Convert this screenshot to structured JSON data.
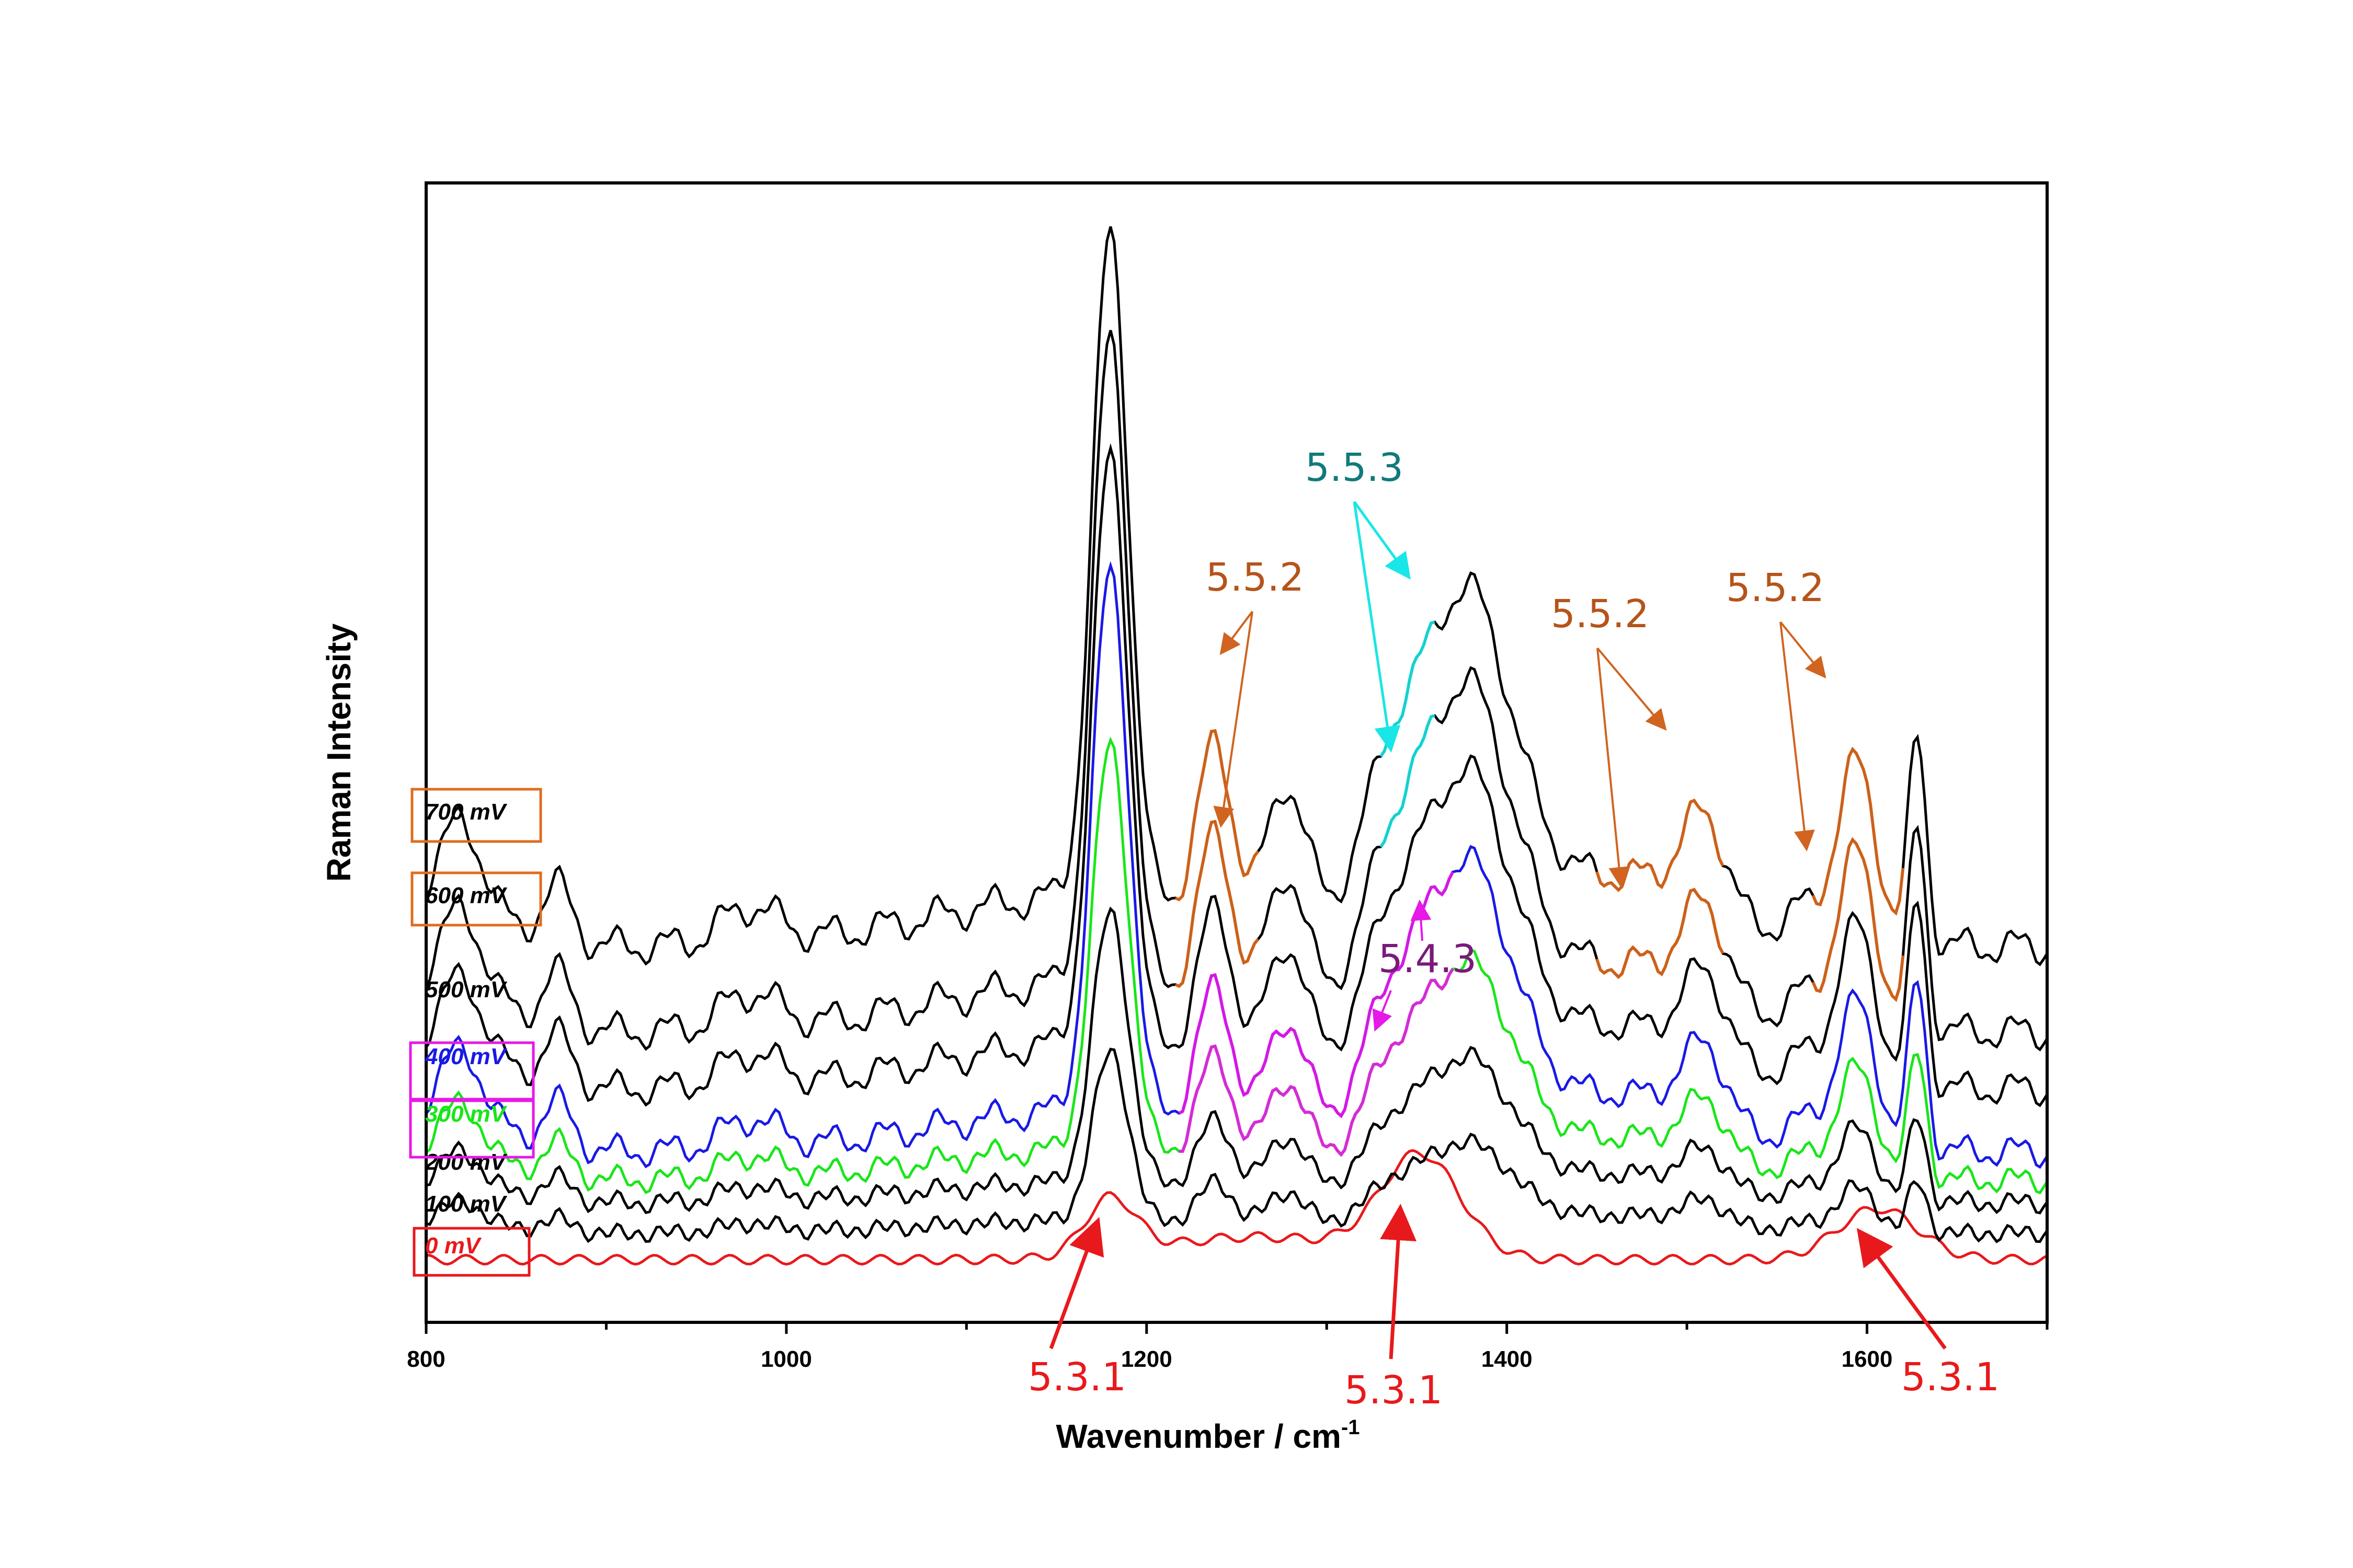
{
  "chart_data": {
    "type": "line",
    "title": "",
    "xlabel": "Wavenumber / cm",
    "xlabel_sup": "-1",
    "ylabel": "Raman Intensity",
    "xlim": [
      800,
      1700
    ],
    "ylim": [
      0,
      1
    ],
    "xticks": [
      800,
      1000,
      1200,
      1400,
      1600
    ],
    "grid": false,
    "series": [
      {
        "name": "0 mV",
        "color": "#e8191c",
        "offset": 0.055,
        "scale": 0.22
      },
      {
        "name": "100 mV",
        "color": "#000000",
        "offset": 0.078,
        "scale": 0.3
      },
      {
        "name": "200 mV",
        "color": "#000000",
        "offset": 0.105,
        "scale": 0.48
      },
      {
        "name": "300 mV",
        "color": "#19e619",
        "offset": 0.125,
        "scale": 0.72
      },
      {
        "name": "400 mV",
        "color": "#1919e6",
        "offset": 0.15,
        "scale": 0.96
      },
      {
        "name": "500 mV",
        "color": "#000000",
        "offset": 0.205,
        "scale": 1.05
      },
      {
        "name": "600 mV",
        "color": "#000000",
        "offset": 0.255,
        "scale": 1.15
      },
      {
        "name": "700 mV",
        "color": "#000000",
        "offset": 0.33,
        "scale": 1.18
      }
    ],
    "label_boxes": [
      {
        "label": "700 mV",
        "color": "#e06c1e"
      },
      {
        "label": "600 mV",
        "color": "#e06c1e"
      },
      {
        "label": "400 mV",
        "color": "#e619e6"
      },
      {
        "label": "300 mV",
        "color": "#e619e6"
      },
      {
        "label": "0 mV",
        "color": "#e8191c"
      }
    ],
    "annotations": [
      {
        "text": "5.3.1",
        "color": "#e8191c",
        "target_x": 1180
      },
      {
        "text": "5.3.1",
        "color": "#e8191c",
        "target_x": 1352
      },
      {
        "text": "5.3.1",
        "color": "#e8191c",
        "target_x": 1606
      },
      {
        "text": "5.5.2",
        "color": "#b5541a",
        "target_x": 1240
      },
      {
        "text": "5.5.2",
        "color": "#b5541a",
        "target_x": 1480
      },
      {
        "text": "5.5.2",
        "color": "#b5541a",
        "target_x": 1590
      },
      {
        "text": "5.5.3",
        "color": "#127a7a",
        "target_x": 1345
      },
      {
        "text": "5.4.3",
        "color": "#7a1a7a",
        "target_x": 1355
      }
    ]
  }
}
